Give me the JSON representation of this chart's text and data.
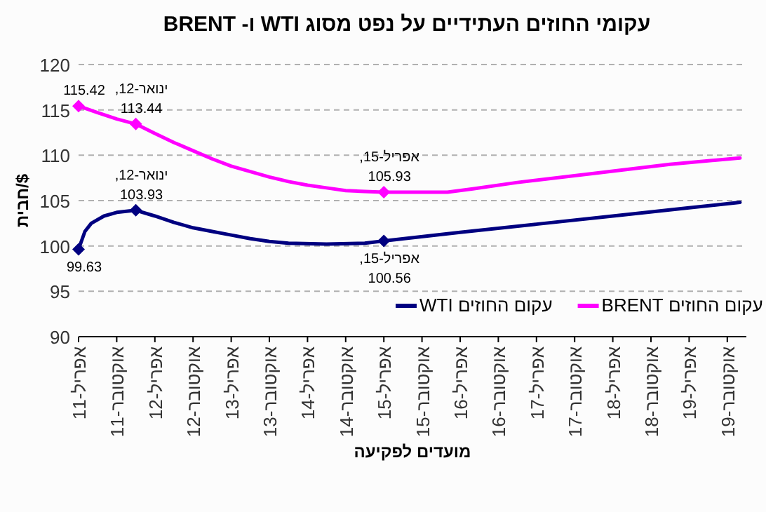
{
  "chart_data": {
    "type": "line",
    "title": "עקומי החוזים העתידיים על נפט מסוג WTI ו- BRENT",
    "xlabel": "מועדים לפקיעה",
    "ylabel": "$/חבית",
    "ylim": [
      90,
      120
    ],
    "yticks": [
      90,
      95,
      100,
      105,
      110,
      115,
      120
    ],
    "xlim": [
      "2011-04",
      "2020-01"
    ],
    "xticks": [
      {
        "value": "2011-04",
        "label": "אפריל-11"
      },
      {
        "value": "2011-10",
        "label": "אוקטובר-11"
      },
      {
        "value": "2012-04",
        "label": "אפריל-12"
      },
      {
        "value": "2012-10",
        "label": "אוקטובר-12"
      },
      {
        "value": "2013-04",
        "label": "אפריל-13"
      },
      {
        "value": "2013-10",
        "label": "אוקטובר-13"
      },
      {
        "value": "2014-04",
        "label": "אפריל-14"
      },
      {
        "value": "2014-10",
        "label": "אוקטובר-14"
      },
      {
        "value": "2015-04",
        "label": "אפריל-15"
      },
      {
        "value": "2015-10",
        "label": "אוקטובר-15"
      },
      {
        "value": "2016-04",
        "label": "אפריל-16"
      },
      {
        "value": "2016-10",
        "label": "אוקטובר-16"
      },
      {
        "value": "2017-04",
        "label": "אפריל-17"
      },
      {
        "value": "2017-10",
        "label": "אוקטובר-17"
      },
      {
        "value": "2018-04",
        "label": "אפריל-18"
      },
      {
        "value": "2018-10",
        "label": "אוקטובר-18"
      },
      {
        "value": "2019-04",
        "label": "אפריל-19"
      },
      {
        "value": "2019-10",
        "label": "אוקטובר-19"
      }
    ],
    "grid": "y",
    "legend": "bottom right",
    "line_style": "solid",
    "series": [
      {
        "name": "עקום החוזים WTI",
        "color": "#000080",
        "x": [
          "2011-04",
          "2011-05",
          "2011-06",
          "2011-08",
          "2011-10",
          "2012-01",
          "2012-04",
          "2012-07",
          "2012-10",
          "2013-01",
          "2013-04",
          "2013-07",
          "2013-10",
          "2014-01",
          "2014-07",
          "2015-01",
          "2015-04",
          "2016-04",
          "2017-04",
          "2018-04",
          "2019-04",
          "2019-12"
        ],
        "values": [
          99.63,
          101.6,
          102.5,
          103.3,
          103.7,
          103.93,
          103.3,
          102.6,
          102.0,
          101.6,
          101.2,
          100.8,
          100.5,
          100.3,
          100.2,
          100.3,
          100.56,
          101.5,
          102.4,
          103.3,
          104.2,
          104.8
        ]
      },
      {
        "name": "עקום החוזים BRENT",
        "color": "#ff00ff",
        "x": [
          "2011-04",
          "2011-07",
          "2011-10",
          "2012-01",
          "2012-04",
          "2012-07",
          "2012-10",
          "2013-01",
          "2013-04",
          "2013-07",
          "2013-10",
          "2014-01",
          "2014-04",
          "2014-07",
          "2014-10",
          "2015-01",
          "2015-04",
          "2015-10",
          "2016-02",
          "2016-06",
          "2017-01",
          "2018-01",
          "2019-01",
          "2019-12"
        ],
        "values": [
          115.42,
          114.7,
          114.0,
          113.44,
          112.4,
          111.4,
          110.5,
          109.6,
          108.8,
          108.2,
          107.6,
          107.1,
          106.7,
          106.4,
          106.1,
          106.0,
          105.93,
          105.93,
          105.93,
          106.3,
          107.0,
          108.0,
          109.0,
          109.7
        ]
      }
    ],
    "annotations": [
      {
        "text": "115.42",
        "x": "2011-04",
        "y": 115.42
      },
      {
        "text": "ינואר-12,\n113.44",
        "x": "2012-01",
        "y": 113.44
      },
      {
        "text": "אפריל-15,\n105.93",
        "x": "2015-04",
        "y": 105.93
      },
      {
        "text": "99.63",
        "x": "2011-04",
        "y": 99.63
      },
      {
        "text": "ינואר-12,\n103.93",
        "x": "2012-01",
        "y": 103.93
      },
      {
        "text": "אפריל-15,\n100.56",
        "x": "2015-04",
        "y": 100.56
      }
    ]
  }
}
